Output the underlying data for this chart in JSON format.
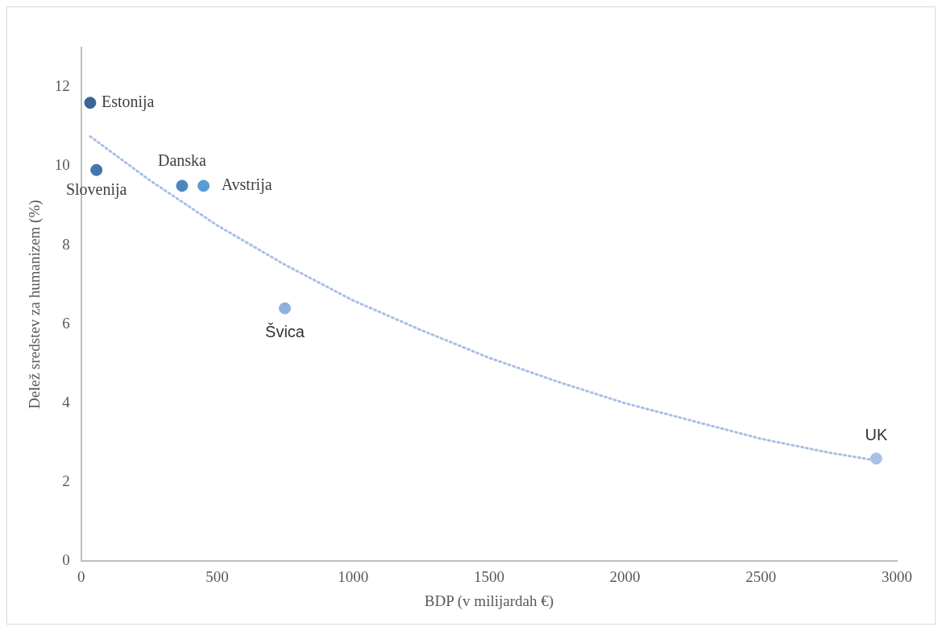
{
  "chart_data": {
    "type": "scatter",
    "xlabel": "BDP (v milijardah €)",
    "ylabel": "Delež sredstev za humanizem (%)",
    "xlim": [
      0,
      3000
    ],
    "xticks": [
      0,
      500,
      1000,
      1500,
      2000,
      2500,
      3000
    ],
    "ylim": [
      0,
      13
    ],
    "yticks": [
      0,
      2,
      4,
      6,
      8,
      10,
      12
    ],
    "grid": false,
    "legend": false,
    "marker": "circle",
    "series": [
      {
        "x": [
          33,
          56,
          371,
          450,
          749,
          2924
        ],
        "values": [
          11.6,
          9.9,
          9.5,
          9.5,
          6.4,
          2.6
        ],
        "colors": [
          "#3a6796",
          "#4277ad",
          "#4a86c0",
          "#5b9bd5",
          "#8fb1de",
          "#a9c1e4"
        ]
      },
      {
        "type": "line",
        "line_style": "dotted",
        "marker": "none",
        "color": "#a9bfe6",
        "x": [
          33,
          250,
          500,
          750,
          1000,
          1250,
          1500,
          1750,
          2000,
          2250,
          2500,
          2750,
          2924
        ],
        "values": [
          10.75,
          9.65,
          8.5,
          7.5,
          6.6,
          5.85,
          5.15,
          4.55,
          4.0,
          3.55,
          3.1,
          2.75,
          2.55
        ]
      }
    ],
    "annotations": [
      {
        "text": "Estonija",
        "x": 33,
        "y": 11.6
      },
      {
        "text": "Slovenija",
        "x": 56,
        "y": 9.9
      },
      {
        "text": "Danska",
        "x": 371,
        "y": 9.5
      },
      {
        "text": "Avstrija",
        "x": 450,
        "y": 9.5
      },
      {
        "text": "Švica",
        "x": 749,
        "y": 6.4
      },
      {
        "text": "UK",
        "x": 2924,
        "y": 2.6
      }
    ]
  }
}
